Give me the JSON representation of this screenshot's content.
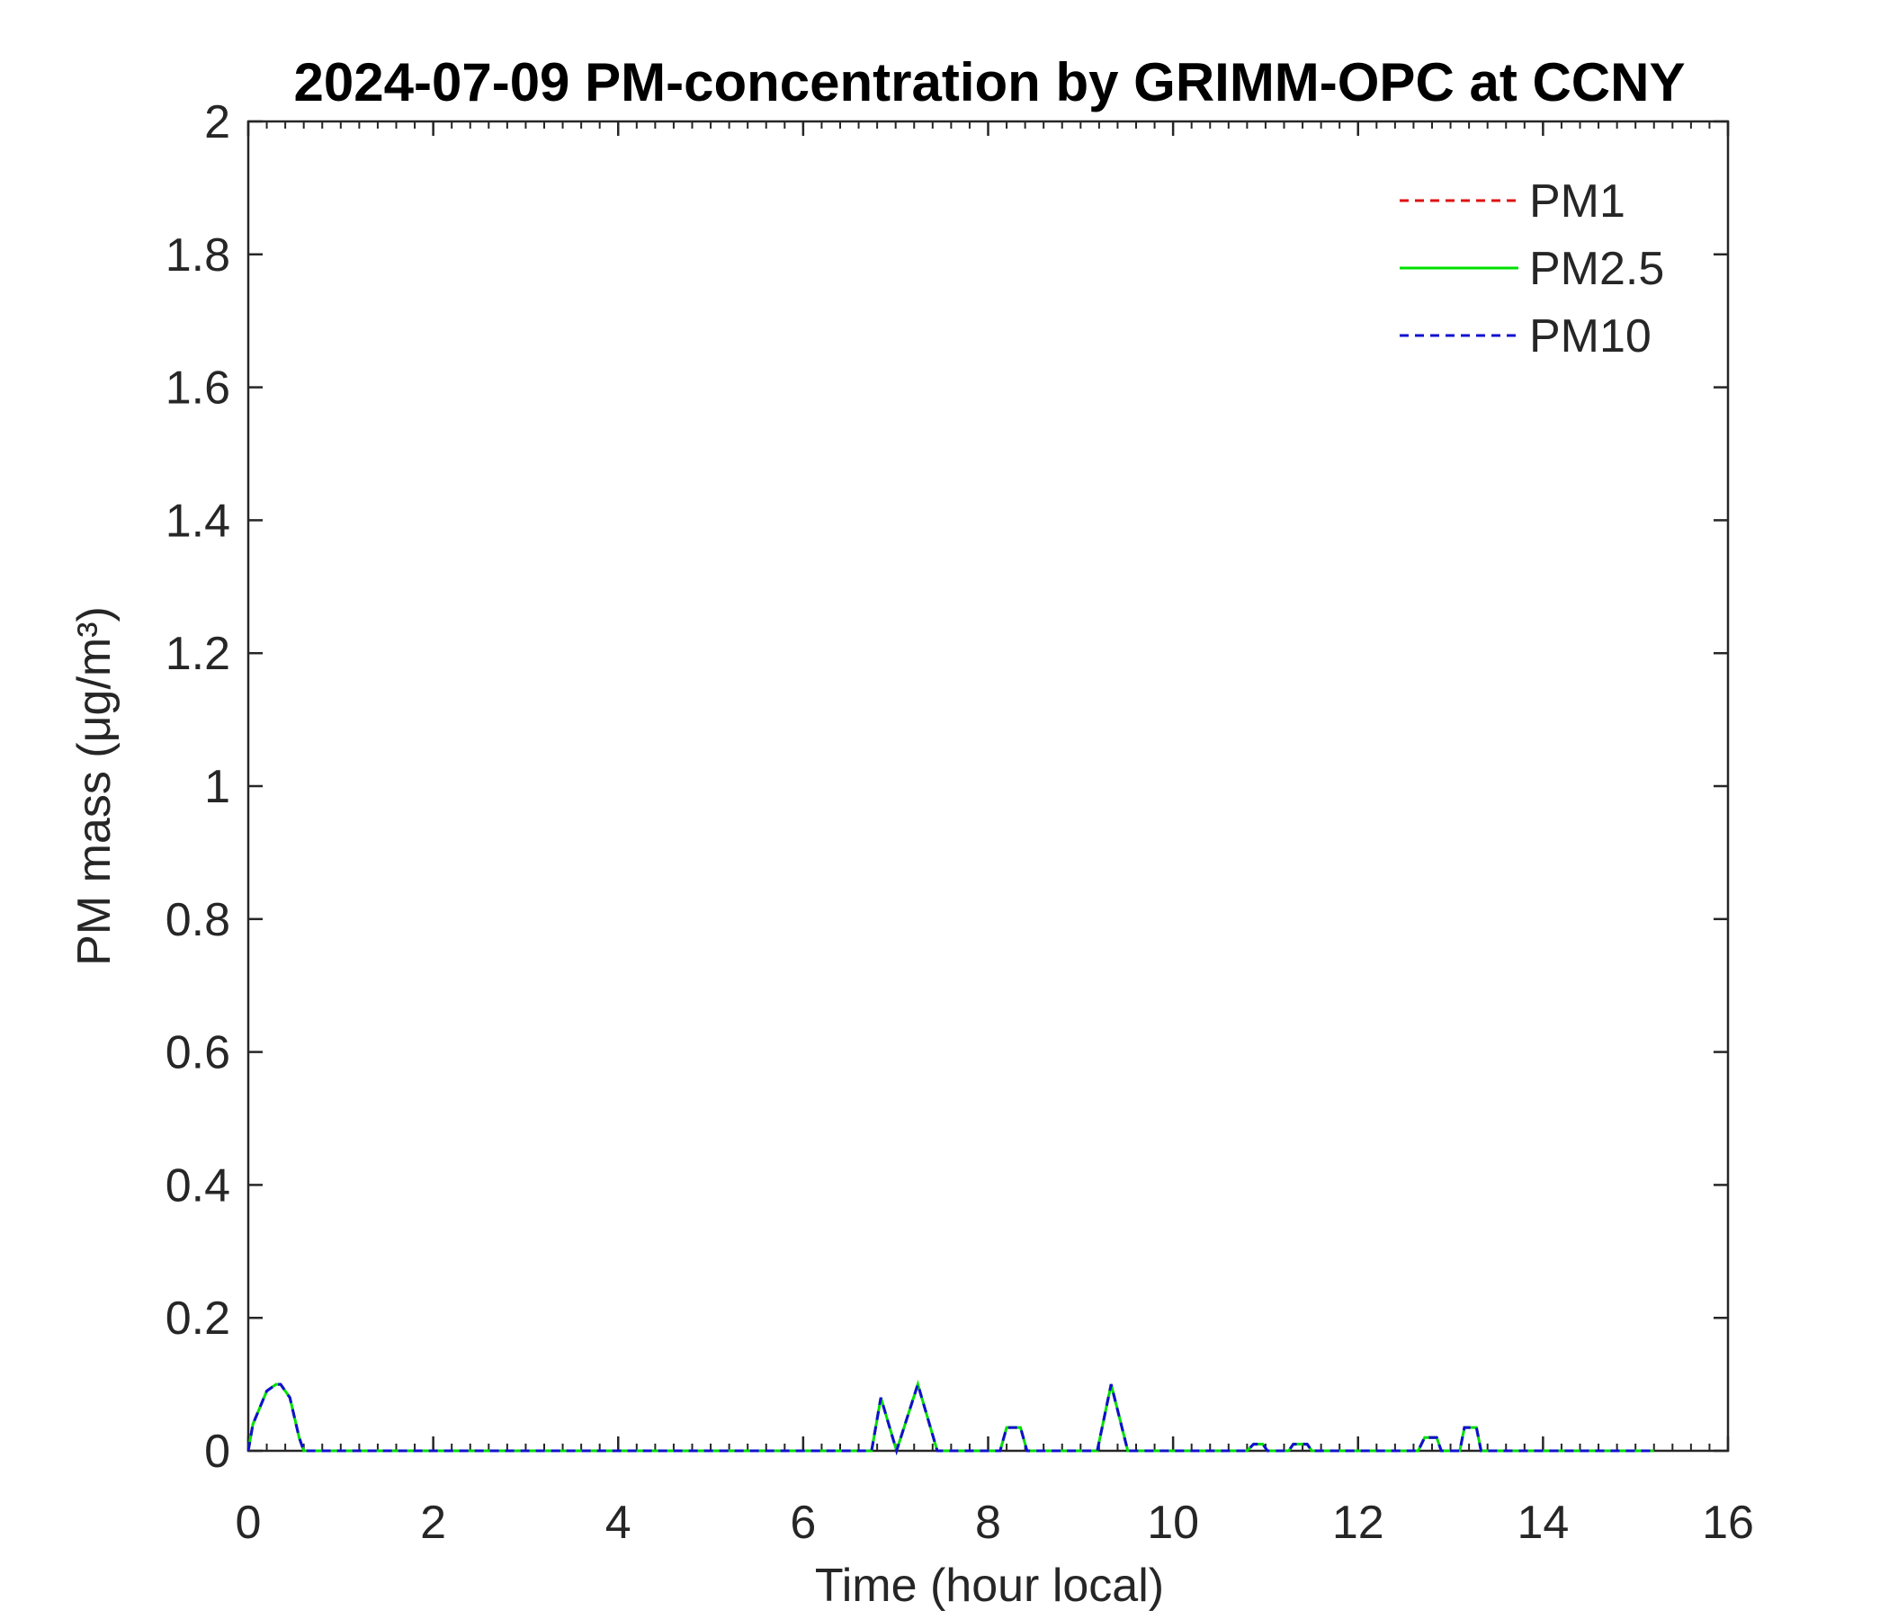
{
  "chart_data": {
    "type": "line",
    "title": "2024-07-09 PM-concentration by GRIMM-OPC at CCNY",
    "x_label": "Time (hour local)",
    "y_label": "PM mass (μg/m³)",
    "x": [
      0,
      0.05,
      0.2,
      0.3,
      0.35,
      0.45,
      0.55,
      0.6,
      6.74,
      6.84,
      7.01,
      7.24,
      7.45,
      8.13,
      8.2,
      8.35,
      8.42,
      9.18,
      9.33,
      9.51,
      10.8,
      10.87,
      10.97,
      11.02,
      11.25,
      11.3,
      11.45,
      11.5,
      12.65,
      12.72,
      12.85,
      12.9,
      13.1,
      13.15,
      13.28,
      13.33,
      15.2
    ],
    "series": [
      {
        "name": "PM1",
        "color": "#e01010",
        "dash": true,
        "values": [
          0,
          0.04,
          0.09,
          0.1,
          0.1,
          0.08,
          0.02,
          0,
          0,
          0.08,
          0,
          0.1,
          0,
          0,
          0.035,
          0.035,
          0,
          0,
          0.1,
          0,
          0,
          0.01,
          0.01,
          0,
          0,
          0.01,
          0.01,
          0,
          0,
          0.02,
          0.02,
          0,
          0,
          0.035,
          0.035,
          0,
          0
        ]
      },
      {
        "name": "PM2.5",
        "color": "#00e000",
        "dash": false,
        "values": [
          0,
          0.04,
          0.09,
          0.1,
          0.1,
          0.08,
          0.02,
          0,
          0,
          0.08,
          0,
          0.1,
          0,
          0,
          0.035,
          0.035,
          0,
          0,
          0.1,
          0,
          0,
          0.01,
          0.01,
          0,
          0,
          0.01,
          0.01,
          0,
          0,
          0.02,
          0.02,
          0,
          0,
          0.035,
          0.035,
          0,
          0
        ]
      },
      {
        "name": "PM10",
        "color": "#1010d0",
        "dash": true,
        "values": [
          0,
          0.04,
          0.09,
          0.1,
          0.1,
          0.08,
          0.02,
          0,
          0,
          0.08,
          0,
          0.1,
          0,
          0,
          0.035,
          0.035,
          0,
          0,
          0.1,
          0,
          0,
          0.01,
          0.01,
          0,
          0,
          0.01,
          0.01,
          0,
          0,
          0.02,
          0.02,
          0,
          0,
          0.035,
          0.035,
          0,
          0
        ]
      }
    ],
    "xlim": [
      0,
      16
    ],
    "xticks": [
      0,
      2,
      4,
      6,
      8,
      10,
      12,
      14,
      16
    ],
    "ylim": [
      0,
      2
    ],
    "yticks": [
      0,
      0.2,
      0.4,
      0.6,
      0.8,
      1,
      1.2,
      1.4,
      1.6,
      1.8,
      2
    ],
    "legend": "upper right",
    "grid": false
  }
}
